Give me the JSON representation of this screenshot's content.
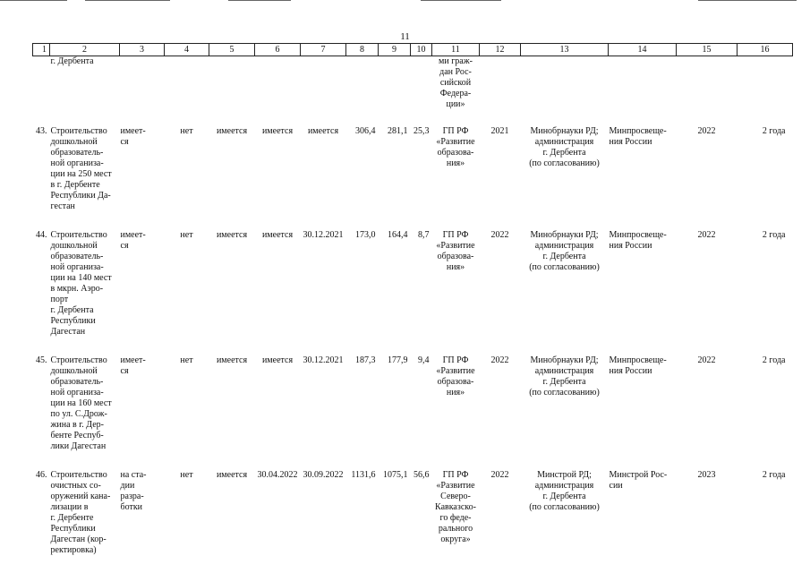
{
  "page_number": "11",
  "header": [
    "1",
    "2",
    "3",
    "4",
    "5",
    "6",
    "7",
    "8",
    "9",
    "10",
    "11",
    "12",
    "13",
    "14",
    "15",
    "16"
  ],
  "continuation": {
    "c2": "г. Дербента",
    "c11": "ми граж-\nдан Рос-\nсийской\nФедера-\nции»"
  },
  "rows": [
    {
      "no": "43.",
      "name": "Строительство\nдошкольной\nобразователь-\nной организа-\nции на 250 мест\nв   г. Дербенте\nРеспублики Да-\nгестан",
      "c3": "имеет-\nся",
      "c4": "нет",
      "c5": "имеется",
      "c6": "имеется",
      "c7": "имеется",
      "c8": "306,4",
      "c9": "281,1",
      "c10": "25,3",
      "c11": "ГП РФ\n«Развитие\nобразова-\nния»",
      "c12": "2021",
      "c13": "Минобрнауки РД;\nадминистрация\nг. Дербента\n(по согласованию)",
      "c14": "Минпросвеще-\nния России",
      "c15": "2022",
      "c16": "2 года"
    },
    {
      "no": "44.",
      "name": "Строительство\nдошкольной\nобразователь-\nной организа-\nции на 140 мест\nв мкрн. Аэро-\nпорт\nг. Дербента\nРеспублики\nДагестан",
      "c3": "имеет-\nся",
      "c4": "нет",
      "c5": "имеется",
      "c6": "имеется",
      "c7": "30.12.2021",
      "c8": "173,0",
      "c9": "164,4",
      "c10": "8,7",
      "c11": "ГП РФ\n«Развитие\nобразова-\nния»",
      "c12": "2022",
      "c13": "Минобрнауки РД;\nадминистрация\nг. Дербента\n(по согласованию)",
      "c14": "Минпросвеще-\nния России",
      "c15": "2022",
      "c16": "2 года"
    },
    {
      "no": "45.",
      "name": "Строительство\nдошкольной\nобразователь-\nной организа-\nции на 160 мест\nпо ул. С.Дрож-\nжина в г. Дер-\nбенте Респуб-\nлики Дагестан",
      "c3": "имеет-\nся",
      "c4": "нет",
      "c5": "имеется",
      "c6": "имеется",
      "c7": "30.12.2021",
      "c8": "187,3",
      "c9": "177,9",
      "c10": "9,4",
      "c11": "ГП РФ\n«Развитие\nобразова-\nния»",
      "c12": "2022",
      "c13": "Минобрнауки РД;\nадминистрация\nг. Дербента\n(по согласованию)",
      "c14": "Минпросвеще-\nния России",
      "c15": "2022",
      "c16": "2 года"
    },
    {
      "no": "46.",
      "name": "Строительство\nочистных со-\nоружений кана-\nлизации в\nг. Дербенте\nРеспублики\nДагестан (кор-\nректировка)",
      "c3": "на ста-\nдии\nразра-\nботки",
      "c4": "нет",
      "c5": "имеется",
      "c6": "30.04.2022",
      "c7": "30.09.2022",
      "c8": "1131,6",
      "c9": "1075,1",
      "c10": "56,6",
      "c11": "ГП РФ\n«Развитие\nСеверо-\nКавказско-\nго феде-\nрального\nокруга»",
      "c12": "2022",
      "c13": "Минстрой РД;\nадминистрация\nг. Дербента\n(по согласованию)",
      "c14": "Минстрой Рос-\nсии",
      "c15": "2023",
      "c16": "2 года"
    }
  ]
}
